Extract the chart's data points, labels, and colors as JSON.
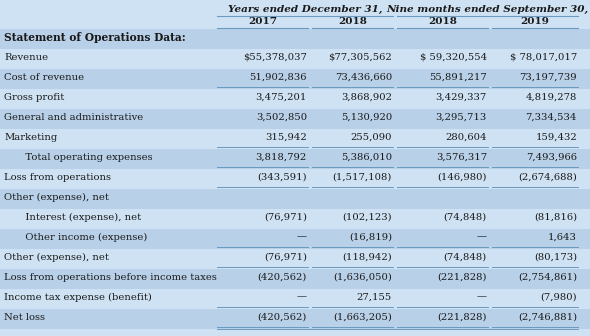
{
  "title_header1": "Years ended December 31,",
  "title_header2": "Nine months ended September 30,",
  "col_headers": [
    "2017",
    "2018",
    "2018",
    "2019"
  ],
  "section_label": "Statement of Operations Data:",
  "rows": [
    {
      "label": "Revenue",
      "values": [
        "$55,378,037",
        "$77,305,562",
        "$ 59,320,554",
        "$ 78,017,017"
      ],
      "indent": 0,
      "bottom_border": false
    },
    {
      "label": "Cost of revenue",
      "values": [
        "51,902,836",
        "73,436,660",
        "55,891,217",
        "73,197,739"
      ],
      "indent": 0,
      "bottom_border": true
    },
    {
      "label": "Gross profit",
      "values": [
        "3,475,201",
        "3,868,902",
        "3,429,337",
        "4,819,278"
      ],
      "indent": 0,
      "bottom_border": false
    },
    {
      "label": "General and administrative",
      "values": [
        "3,502,850",
        "5,130,920",
        "3,295,713",
        "7,334,534"
      ],
      "indent": 0,
      "bottom_border": false
    },
    {
      "label": "Marketing",
      "values": [
        "315,942",
        "255,090",
        "280,604",
        "159,432"
      ],
      "indent": 0,
      "bottom_border": true
    },
    {
      "label": "   Total operating expenses",
      "values": [
        "3,818,792",
        "5,386,010",
        "3,576,317",
        "7,493,966"
      ],
      "indent": 1,
      "bottom_border": true
    },
    {
      "label": "Loss from operations",
      "values": [
        "(343,591)",
        "(1,517,108)",
        "(146,980)",
        "(2,674,688)"
      ],
      "indent": 0,
      "bottom_border": true
    },
    {
      "label": "Other (expense), net",
      "values": [
        "",
        "",
        "",
        ""
      ],
      "indent": 0,
      "bottom_border": false
    },
    {
      "label": "   Interest (expense), net",
      "values": [
        "(76,971)",
        "(102,123)",
        "(74,848)",
        "(81,816)"
      ],
      "indent": 1,
      "bottom_border": false
    },
    {
      "label": "   Other income (expense)",
      "values": [
        "—",
        "(16,819)",
        "—",
        "1,643"
      ],
      "indent": 1,
      "bottom_border": true
    },
    {
      "label": "Other (expense), net",
      "values": [
        "(76,971)",
        "(118,942)",
        "(74,848)",
        "(80,173)"
      ],
      "indent": 0,
      "bottom_border": true
    },
    {
      "label": "Loss from operations before income taxes",
      "values": [
        "(420,562)",
        "(1,636,050)",
        "(221,828)",
        "(2,754,861)"
      ],
      "indent": 0,
      "bottom_border": false
    },
    {
      "label": "Income tax expense (benefit)",
      "values": [
        "—",
        "27,155",
        "—",
        "(7,980)"
      ],
      "indent": 0,
      "bottom_border": true
    },
    {
      "label": "Net loss",
      "values": [
        "(420,562)",
        "(1,663,205)",
        "(221,828)",
        "(2,746,881)"
      ],
      "indent": 0,
      "bottom_border": true
    }
  ],
  "bg_light": "#cfe2f3",
  "bg_dark": "#b8d0e8",
  "section_bg": "#b8d0e8",
  "text_color": "#1a1a1a",
  "line_color": "#6a9abf",
  "font_size": 7.2,
  "header_font_size": 7.5
}
